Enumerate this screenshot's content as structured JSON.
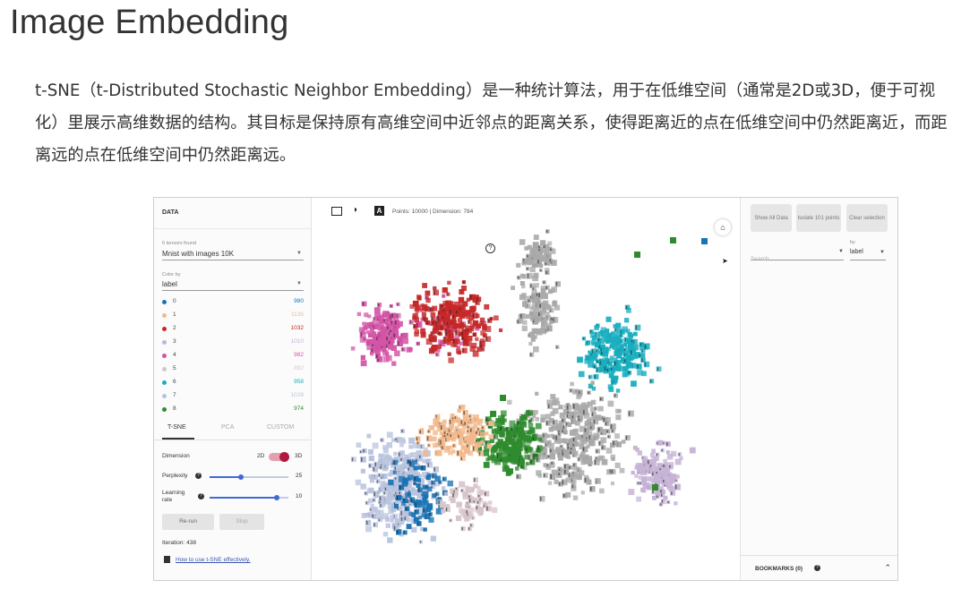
{
  "page": {
    "title": "Image Embedding",
    "intro": "t-SNE（t-Distributed Stochastic Neighbor Embedding）是一种统计算法，用于在低维空间（通常是2D或3D，便于可视化）里展示高维数据的结构。其目标是保持原有高维空间中近邻点的距离关系，使得距离近的点在低维空间中仍然距离近，而距离远的点在低维空间中仍然距离远。"
  },
  "projector": {
    "left_panel": {
      "section_title": "DATA",
      "tensors_found_label": "6 tensors found",
      "tensor_select_value": "Mnist with images 10K",
      "color_by_label": "Color by",
      "color_by_value": "label",
      "legend": [
        {
          "label": "0",
          "count": "980",
          "color": "#1a73b5"
        },
        {
          "label": "1",
          "count": "1135",
          "color": "#f2b98c"
        },
        {
          "label": "2",
          "count": "1032",
          "color": "#c62828"
        },
        {
          "label": "3",
          "count": "1010",
          "color": "#c6b3d6"
        },
        {
          "label": "4",
          "count": "982",
          "color": "#d354a6"
        },
        {
          "label": "5",
          "count": "892",
          "color": "#d8c4cc"
        },
        {
          "label": "6",
          "count": "958",
          "color": "#18aebf"
        },
        {
          "label": "7",
          "count": "1028",
          "color": "#b9c3de"
        },
        {
          "label": "8",
          "count": "974",
          "color": "#2e8b2e"
        }
      ],
      "tabs": [
        "T-SNE",
        "PCA",
        "CUSTOM"
      ],
      "dimension_label": "Dimension",
      "dimension_option_a": "2D",
      "dimension_option_b": "3D",
      "perplexity_label": "Perplexity",
      "perplexity_value": "25",
      "perplexity_fraction": 0.4,
      "learning_rate_label": "Learning rate",
      "learning_rate_value": "10",
      "learning_rate_fraction": 0.85,
      "rerun_label": "Re-run",
      "stop_label": "Stop",
      "iteration_text": "Iteration: 438",
      "help_link": "How to use t-SNE effectively."
    },
    "center": {
      "stats": "Points: 10000 | Dimension: 784",
      "help_symbol": "?",
      "home_symbol": "⌂"
    },
    "right_panel": {
      "show_all_label": "Show All Data",
      "isolate_label": "Isolate 101 points",
      "clear_label": "Clear selection",
      "search_placeholder": "Search",
      "by_label": "by",
      "by_value": "label",
      "bookmarks_label": "BOOKMARKS (0)"
    }
  }
}
